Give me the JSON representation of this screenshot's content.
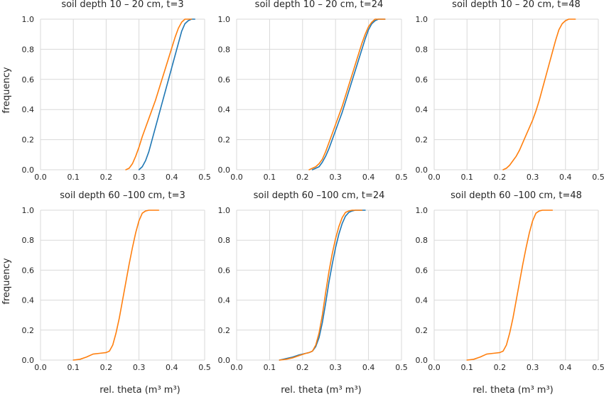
{
  "figure": {
    "ylabel": "frequency",
    "xlabel": "rel. theta (m³ m³)"
  },
  "colors": {
    "series_1": "#1f77b4",
    "series_2": "#ff7f0e",
    "grid": "#d9d9d9",
    "axes_bg": "#ffffff"
  },
  "chart_data": [
    {
      "type": "line",
      "title": "soil depth 10 – 20 cm, t=3",
      "xlim": [
        0.0,
        0.5
      ],
      "ylim": [
        0.0,
        1.0
      ],
      "xticks": [
        0.0,
        0.1,
        0.2,
        0.3,
        0.4,
        0.5
      ],
      "xtick_labels": [
        "0.0",
        "0.1",
        "0.2",
        "0.3",
        "0.4",
        "0.5"
      ],
      "yticks": [
        0.0,
        0.2,
        0.4,
        0.6,
        0.8,
        1.0
      ],
      "ytick_labels": [
        "0.0",
        "0.2",
        "0.4",
        "0.6",
        "0.8",
        "1.0"
      ],
      "grid": true,
      "series": [
        {
          "color": "#1f77b4",
          "x": [
            0.3,
            0.31,
            0.32,
            0.33,
            0.34,
            0.35,
            0.36,
            0.37,
            0.38,
            0.39,
            0.4,
            0.41,
            0.42,
            0.43,
            0.44,
            0.45,
            0.46,
            0.47
          ],
          "y": [
            0.0,
            0.02,
            0.06,
            0.12,
            0.2,
            0.28,
            0.36,
            0.44,
            0.52,
            0.6,
            0.68,
            0.76,
            0.84,
            0.92,
            0.97,
            0.99,
            1.0,
            1.0
          ]
        },
        {
          "color": "#ff7f0e",
          "x": [
            0.26,
            0.27,
            0.28,
            0.29,
            0.3,
            0.31,
            0.32,
            0.33,
            0.34,
            0.35,
            0.36,
            0.37,
            0.38,
            0.39,
            0.4,
            0.41,
            0.42,
            0.43,
            0.44,
            0.45,
            0.46
          ],
          "y": [
            0.0,
            0.01,
            0.04,
            0.09,
            0.15,
            0.22,
            0.28,
            0.34,
            0.4,
            0.46,
            0.53,
            0.6,
            0.67,
            0.74,
            0.81,
            0.88,
            0.94,
            0.98,
            1.0,
            1.0,
            1.0
          ]
        }
      ]
    },
    {
      "type": "line",
      "title": "soil depth 10 – 20 cm, t=24",
      "xlim": [
        0.0,
        0.5
      ],
      "ylim": [
        0.0,
        1.0
      ],
      "xticks": [
        0.0,
        0.1,
        0.2,
        0.3,
        0.4,
        0.5
      ],
      "xtick_labels": [
        "0.0",
        "0.1",
        "0.2",
        "0.3",
        "0.4",
        "0.5"
      ],
      "yticks": [
        0.0,
        0.2,
        0.4,
        0.6,
        0.8,
        1.0
      ],
      "ytick_labels": [
        "0.0",
        "0.2",
        "0.4",
        "0.6",
        "0.8",
        "1.0"
      ],
      "grid": true,
      "series": [
        {
          "color": "#1f77b4",
          "x": [
            0.23,
            0.24,
            0.25,
            0.26,
            0.27,
            0.28,
            0.29,
            0.3,
            0.31,
            0.32,
            0.33,
            0.34,
            0.35,
            0.36,
            0.37,
            0.38,
            0.39,
            0.4,
            0.41,
            0.42,
            0.43,
            0.44,
            0.45
          ],
          "y": [
            0.0,
            0.01,
            0.02,
            0.05,
            0.09,
            0.14,
            0.2,
            0.26,
            0.32,
            0.38,
            0.45,
            0.52,
            0.59,
            0.66,
            0.73,
            0.8,
            0.87,
            0.93,
            0.97,
            0.99,
            1.0,
            1.0,
            1.0
          ]
        },
        {
          "color": "#ff7f0e",
          "x": [
            0.22,
            0.23,
            0.24,
            0.25,
            0.26,
            0.27,
            0.28,
            0.29,
            0.3,
            0.31,
            0.32,
            0.33,
            0.34,
            0.35,
            0.36,
            0.37,
            0.38,
            0.39,
            0.4,
            0.41,
            0.42,
            0.43,
            0.44,
            0.45
          ],
          "y": [
            0.0,
            0.01,
            0.02,
            0.04,
            0.07,
            0.12,
            0.18,
            0.24,
            0.3,
            0.36,
            0.42,
            0.49,
            0.56,
            0.63,
            0.7,
            0.77,
            0.84,
            0.9,
            0.95,
            0.98,
            1.0,
            1.0,
            1.0,
            1.0
          ]
        }
      ]
    },
    {
      "type": "line",
      "title": "soil depth 10 – 20 cm, t=48",
      "xlim": [
        0.0,
        0.5
      ],
      "ylim": [
        0.0,
        1.0
      ],
      "xticks": [
        0.0,
        0.1,
        0.2,
        0.3,
        0.4,
        0.5
      ],
      "xtick_labels": [
        "0.0",
        "0.1",
        "0.2",
        "0.3",
        "0.4",
        "0.5"
      ],
      "yticks": [
        0.0,
        0.2,
        0.4,
        0.6,
        0.8,
        1.0
      ],
      "ytick_labels": [
        "0.0",
        "0.2",
        "0.4",
        "0.6",
        "0.8",
        "1.0"
      ],
      "grid": true,
      "series": [
        {
          "color": "#ff7f0e",
          "x": [
            0.21,
            0.22,
            0.23,
            0.24,
            0.25,
            0.26,
            0.27,
            0.28,
            0.29,
            0.3,
            0.31,
            0.32,
            0.33,
            0.34,
            0.35,
            0.36,
            0.37,
            0.38,
            0.39,
            0.4,
            0.41,
            0.42,
            0.43
          ],
          "y": [
            0.0,
            0.01,
            0.03,
            0.06,
            0.09,
            0.13,
            0.18,
            0.23,
            0.28,
            0.33,
            0.39,
            0.46,
            0.54,
            0.62,
            0.7,
            0.78,
            0.86,
            0.93,
            0.97,
            0.99,
            1.0,
            1.0,
            1.0
          ]
        }
      ]
    },
    {
      "type": "line",
      "title": "soil depth 60 –100 cm, t=3",
      "xlim": [
        0.0,
        0.5
      ],
      "ylim": [
        0.0,
        1.0
      ],
      "xticks": [
        0.0,
        0.1,
        0.2,
        0.3,
        0.4,
        0.5
      ],
      "xtick_labels": [
        "0.0",
        "0.1",
        "0.2",
        "0.3",
        "0.4",
        "0.5"
      ],
      "yticks": [
        0.0,
        0.2,
        0.4,
        0.6,
        0.8,
        1.0
      ],
      "ytick_labels": [
        "0.0",
        "0.2",
        "0.4",
        "0.6",
        "0.8",
        "1.0"
      ],
      "grid": true,
      "series": [
        {
          "color": "#ff7f0e",
          "x": [
            0.1,
            0.12,
            0.14,
            0.16,
            0.18,
            0.2,
            0.21,
            0.22,
            0.23,
            0.24,
            0.25,
            0.26,
            0.27,
            0.28,
            0.29,
            0.3,
            0.31,
            0.32,
            0.33,
            0.34,
            0.36
          ],
          "y": [
            0.0,
            0.005,
            0.02,
            0.04,
            0.045,
            0.05,
            0.06,
            0.1,
            0.18,
            0.28,
            0.4,
            0.52,
            0.64,
            0.75,
            0.85,
            0.93,
            0.98,
            0.995,
            1.0,
            1.0,
            1.0
          ]
        }
      ]
    },
    {
      "type": "line",
      "title": "soil depth 60 –100 cm, t=24",
      "xlim": [
        0.0,
        0.5
      ],
      "ylim": [
        0.0,
        1.0
      ],
      "xticks": [
        0.0,
        0.1,
        0.2,
        0.3,
        0.4,
        0.5
      ],
      "xtick_labels": [
        "0.0",
        "0.1",
        "0.2",
        "0.3",
        "0.4",
        "0.5"
      ],
      "yticks": [
        0.0,
        0.2,
        0.4,
        0.6,
        0.8,
        1.0
      ],
      "ytick_labels": [
        "0.0",
        "0.2",
        "0.4",
        "0.6",
        "0.8",
        "1.0"
      ],
      "grid": true,
      "series": [
        {
          "color": "#1f77b4",
          "x": [
            0.13,
            0.15,
            0.17,
            0.19,
            0.21,
            0.22,
            0.23,
            0.24,
            0.25,
            0.26,
            0.27,
            0.28,
            0.29,
            0.3,
            0.31,
            0.32,
            0.33,
            0.34,
            0.35,
            0.36,
            0.37,
            0.39
          ],
          "y": [
            0.0,
            0.01,
            0.02,
            0.035,
            0.045,
            0.05,
            0.06,
            0.09,
            0.15,
            0.25,
            0.38,
            0.52,
            0.64,
            0.75,
            0.84,
            0.91,
            0.96,
            0.985,
            0.995,
            1.0,
            1.0,
            1.0
          ]
        },
        {
          "color": "#ff7f0e",
          "x": [
            0.13,
            0.15,
            0.17,
            0.19,
            0.21,
            0.22,
            0.23,
            0.24,
            0.25,
            0.26,
            0.27,
            0.28,
            0.29,
            0.3,
            0.31,
            0.32,
            0.33,
            0.34,
            0.35,
            0.36,
            0.38
          ],
          "y": [
            0.0,
            0.005,
            0.015,
            0.03,
            0.045,
            0.05,
            0.06,
            0.1,
            0.18,
            0.3,
            0.45,
            0.59,
            0.71,
            0.81,
            0.89,
            0.95,
            0.985,
            0.995,
            1.0,
            1.0,
            1.0
          ]
        }
      ]
    },
    {
      "type": "line",
      "title": "soil depth 60 –100 cm, t=48",
      "xlim": [
        0.0,
        0.5
      ],
      "ylim": [
        0.0,
        1.0
      ],
      "xticks": [
        0.0,
        0.1,
        0.2,
        0.3,
        0.4,
        0.5
      ],
      "xtick_labels": [
        "0.0",
        "0.1",
        "0.2",
        "0.3",
        "0.4",
        "0.5"
      ],
      "yticks": [
        0.0,
        0.2,
        0.4,
        0.6,
        0.8,
        1.0
      ],
      "ytick_labels": [
        "0.0",
        "0.2",
        "0.4",
        "0.6",
        "0.8",
        "1.0"
      ],
      "grid": true,
      "series": [
        {
          "color": "#ff7f0e",
          "x": [
            0.1,
            0.12,
            0.14,
            0.16,
            0.18,
            0.2,
            0.21,
            0.22,
            0.23,
            0.24,
            0.25,
            0.26,
            0.27,
            0.28,
            0.29,
            0.3,
            0.31,
            0.32,
            0.33,
            0.34,
            0.36
          ],
          "y": [
            0.0,
            0.005,
            0.02,
            0.04,
            0.045,
            0.05,
            0.06,
            0.1,
            0.18,
            0.28,
            0.4,
            0.52,
            0.64,
            0.75,
            0.85,
            0.93,
            0.98,
            0.995,
            1.0,
            1.0,
            1.0
          ]
        }
      ]
    }
  ]
}
